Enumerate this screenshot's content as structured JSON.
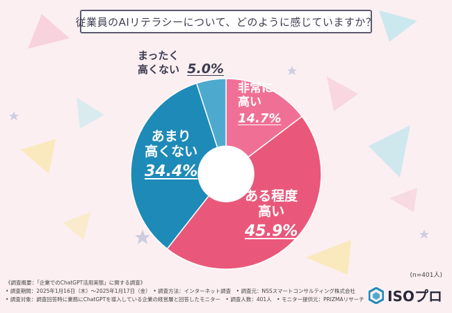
{
  "title": "従業員のAIリテラシーについて、どのように感じていますか？",
  "chart_data": {
    "type": "pie",
    "variant": "donut",
    "slices": [
      {
        "label_lines": [
          "非常に",
          "高い"
        ],
        "value": 14.7,
        "value_text": "14.7%",
        "color": "#f07095"
      },
      {
        "label_lines": [
          "ある程度",
          "高い"
        ],
        "value": 45.9,
        "value_text": "45.9%",
        "color": "#e9587a"
      },
      {
        "label_lines": [
          "あまり",
          "高くない"
        ],
        "value": 34.4,
        "value_text": "34.4%",
        "color": "#1e8ab8"
      },
      {
        "label_lines": [
          "まったく",
          "高くない"
        ],
        "value": 5.0,
        "value_text": "5.0%",
        "color": "#4ea9cf"
      }
    ]
  },
  "sample_note": "(n=401人)",
  "footer_lines": [
    "《調査概要：「企業でのChatGPT活用実態」に関する調査》",
    "• 調査期間：2025年1月16日（木）～2025年1月17日（金）　• 調査方法：インターネット調査　• 調査元：NSSスマートコンサルティング株式会社",
    "• 調査対象：調査回答時に業務にChatGPTを導入している企業の経営層と回答したモニター　• 調査人数：401人　• モニター提供元：PRIZMAリサーチ"
  ],
  "logo_text": "ISOプロ"
}
